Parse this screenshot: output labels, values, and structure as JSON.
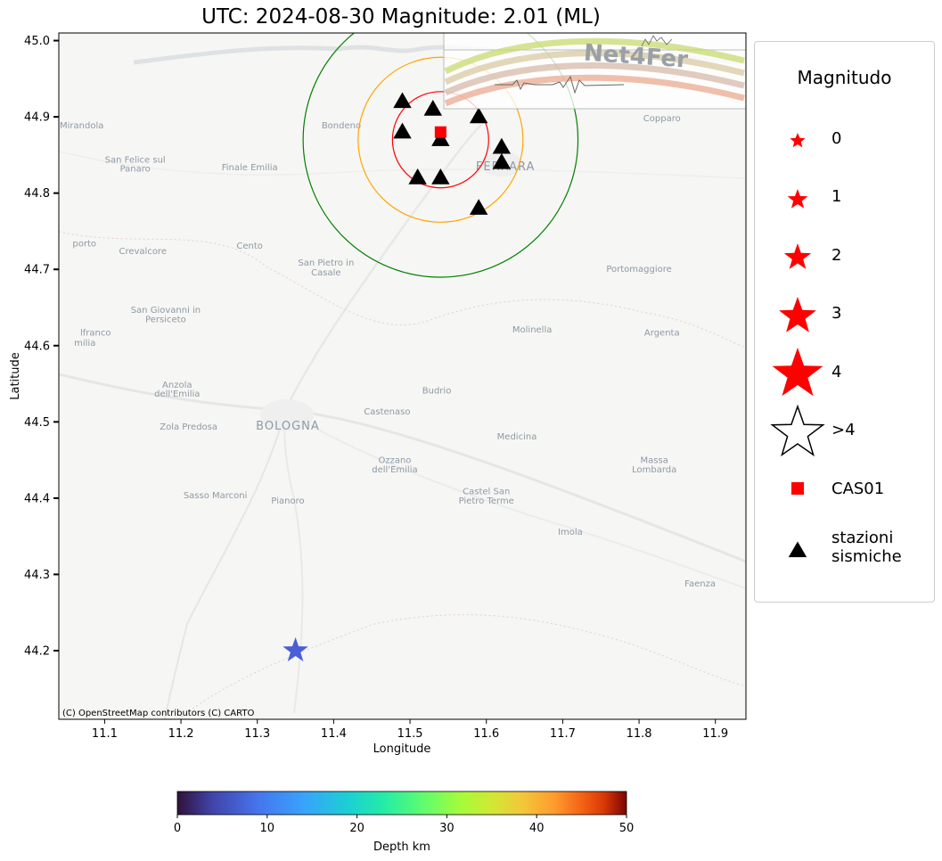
{
  "title": "UTC: 2024-08-30 Magnitude: 2.01 (ML)",
  "chart_data": {
    "type": "scatter",
    "title": "UTC: 2024-08-30 Magnitude: 2.01 (ML)",
    "xlabel": "Longitude",
    "ylabel": "Latitude",
    "xlim": [
      11.04,
      11.94
    ],
    "ylim": [
      44.11,
      45.01
    ],
    "xticks": [
      "11.1",
      "11.2",
      "11.3",
      "11.4",
      "11.5",
      "11.6",
      "11.7",
      "11.8",
      "11.9"
    ],
    "yticks": [
      "44.2",
      "44.3",
      "44.4",
      "44.5",
      "44.6",
      "44.7",
      "44.8",
      "44.9",
      "45.0"
    ],
    "grid": false,
    "event": {
      "lon": 11.35,
      "lat": 44.2,
      "magnitude": 2.01,
      "depth_km": 7
    },
    "station_cas01": {
      "lon": 11.54,
      "lat": 44.88
    },
    "stations": [
      {
        "lon": 11.49,
        "lat": 44.92
      },
      {
        "lon": 11.53,
        "lat": 44.91
      },
      {
        "lon": 11.59,
        "lat": 44.9
      },
      {
        "lon": 11.49,
        "lat": 44.88
      },
      {
        "lon": 11.54,
        "lat": 44.87
      },
      {
        "lon": 11.62,
        "lat": 44.86
      },
      {
        "lon": 11.62,
        "lat": 44.84
      },
      {
        "lon": 11.51,
        "lat": 44.82
      },
      {
        "lon": 11.54,
        "lat": 44.82
      },
      {
        "lon": 11.59,
        "lat": 44.78
      }
    ],
    "rings": [
      {
        "center_lon": 11.54,
        "center_lat": 44.87,
        "radius_deg": 0.063,
        "color": "#ff0000"
      },
      {
        "center_lon": 11.54,
        "center_lat": 44.87,
        "radius_deg": 0.108,
        "color": "#ffa500"
      },
      {
        "center_lon": 11.54,
        "center_lat": 44.87,
        "radius_deg": 0.18,
        "color": "#008000"
      }
    ],
    "colorbar": {
      "label": "Depth km",
      "min": 0,
      "max": 50,
      "ticks": [
        "0",
        "10",
        "20",
        "30",
        "40",
        "50"
      ],
      "colormap": "turbo"
    },
    "attribution": "(C) OpenStreetMap contributors (C) CARTO"
  },
  "legend": {
    "title": "Magnitudo",
    "items": [
      {
        "label": "0",
        "symbol": "star"
      },
      {
        "label": "1",
        "symbol": "star"
      },
      {
        "label": "2",
        "symbol": "star"
      },
      {
        "label": "3",
        "symbol": "star"
      },
      {
        "label": "4",
        "symbol": "star"
      },
      {
        "label": ">4",
        "symbol": "star-outline"
      },
      {
        "label": "CAS01",
        "symbol": "square"
      },
      {
        "label": "stazioni\nsismiche",
        "symbol": "triangle"
      }
    ]
  },
  "map_places": [
    {
      "name": "Mirandola",
      "lon": 11.07,
      "lat": 44.885
    },
    {
      "name": "Bondeno",
      "lon": 11.41,
      "lat": 44.885
    },
    {
      "name": "Copparo",
      "lon": 11.83,
      "lat": 44.894
    },
    {
      "name": "San Felice sul",
      "lon": 11.14,
      "lat": 44.84
    },
    {
      "name": "Panaro",
      "lon": 11.14,
      "lat": 44.828
    },
    {
      "name": "Finale Emilia",
      "lon": 11.29,
      "lat": 44.83
    },
    {
      "name": "Cento",
      "lon": 11.29,
      "lat": 44.727
    },
    {
      "name": "Crevalcore",
      "lon": 11.15,
      "lat": 44.72
    },
    {
      "name": "San Pietro in",
      "lon": 11.39,
      "lat": 44.705
    },
    {
      "name": "Casale",
      "lon": 11.39,
      "lat": 44.692
    },
    {
      "name": "Portomaggiore",
      "lon": 11.8,
      "lat": 44.697
    },
    {
      "name": "San Giovanni in",
      "lon": 11.18,
      "lat": 44.643
    },
    {
      "name": "Persiceto",
      "lon": 11.18,
      "lat": 44.631
    },
    {
      "name": "Molinella",
      "lon": 11.66,
      "lat": 44.617
    },
    {
      "name": "Argenta",
      "lon": 11.83,
      "lat": 44.613
    },
    {
      "name": "Anzola",
      "lon": 11.195,
      "lat": 44.545
    },
    {
      "name": "dell'Emilia",
      "lon": 11.195,
      "lat": 44.533
    },
    {
      "name": "Budrio",
      "lon": 11.535,
      "lat": 44.537
    },
    {
      "name": "Castenaso",
      "lon": 11.47,
      "lat": 44.51
    },
    {
      "name": "Zola Predosa",
      "lon": 11.21,
      "lat": 44.49
    },
    {
      "name": "Medicina",
      "lon": 11.64,
      "lat": 44.477
    },
    {
      "name": "Ozzano",
      "lon": 11.48,
      "lat": 44.446
    },
    {
      "name": "dell'Emilia",
      "lon": 11.48,
      "lat": 44.434
    },
    {
      "name": "Massa",
      "lon": 11.82,
      "lat": 44.446
    },
    {
      "name": "Lombarda",
      "lon": 11.82,
      "lat": 44.434
    },
    {
      "name": "Castel San",
      "lon": 11.6,
      "lat": 44.405
    },
    {
      "name": "Pietro Terme",
      "lon": 11.6,
      "lat": 44.393
    },
    {
      "name": "Sasso Marconi",
      "lon": 11.245,
      "lat": 44.4
    },
    {
      "name": "Pianoro",
      "lon": 11.34,
      "lat": 44.393
    },
    {
      "name": "Imola",
      "lon": 11.71,
      "lat": 44.352
    },
    {
      "name": "Faenza",
      "lon": 11.88,
      "lat": 44.284
    }
  ],
  "map_labels_big": [
    {
      "name": "BOLOGNA",
      "lon": 11.34,
      "lat": 44.49
    },
    {
      "name": "FERRARA",
      "lon": 11.625,
      "lat": 44.83
    }
  ],
  "map_labels_edge": [
    {
      "name": "porto",
      "lon": 11.058,
      "lat": 44.73
    },
    {
      "name": "lfranco",
      "lon": 11.068,
      "lat": 44.613
    },
    {
      "name": "milia",
      "lon": 11.06,
      "lat": 44.6
    }
  ],
  "logo": {
    "text": "Net4Fer"
  }
}
